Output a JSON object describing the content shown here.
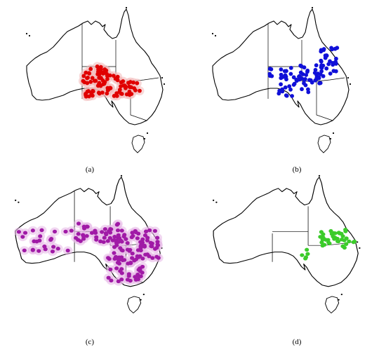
{
  "panels": [
    {
      "label": "(a)",
      "color": "#e00000",
      "halo": "#f3b8b8"
    },
    {
      "label": "(b)",
      "color": "#1010d8",
      "halo": ""
    },
    {
      "label": "(c)",
      "color": "#a01aa6",
      "halo": "#e6b6e6"
    },
    {
      "label": "(d)",
      "color": "#3bcb2a",
      "halo": ""
    }
  ]
}
